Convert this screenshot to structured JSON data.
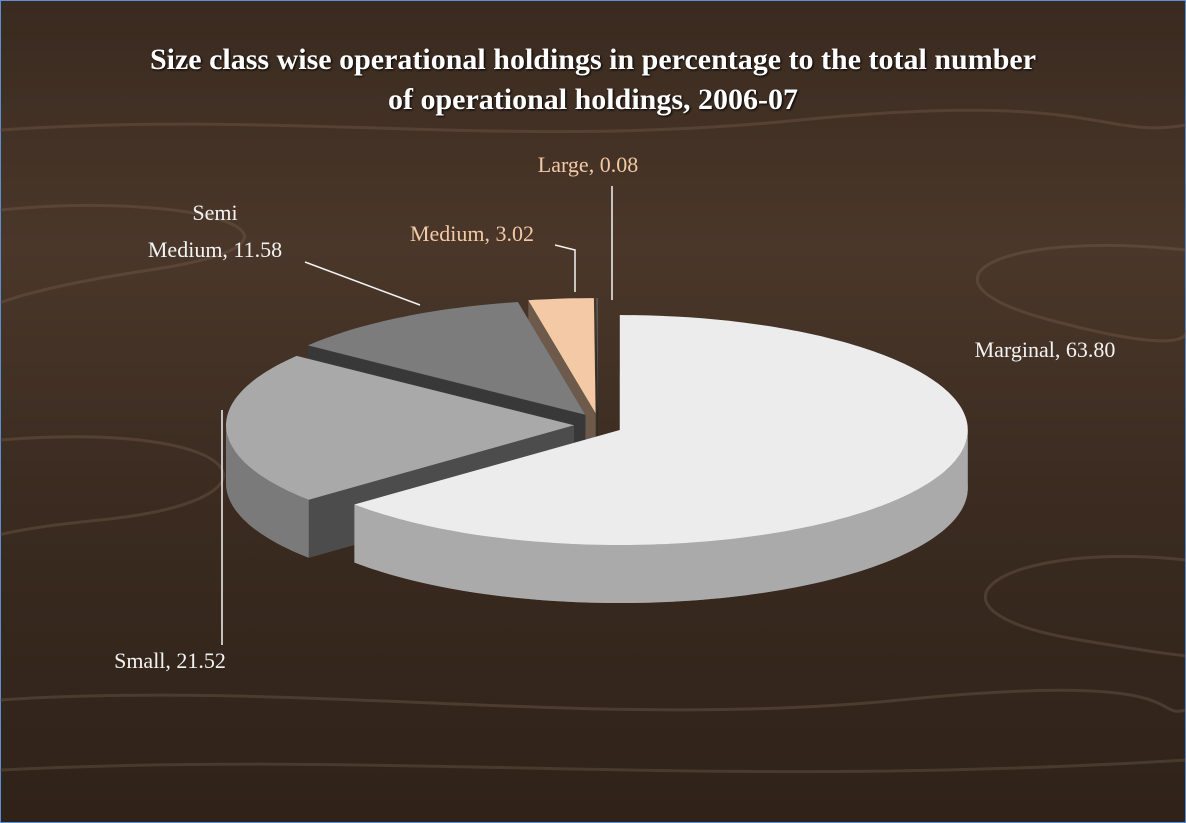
{
  "chart_data": {
    "type": "pie",
    "title": "Size class wise operational holdings in percentage to the total number of operational holdings, 2006-07",
    "values": [
      63.8,
      21.52,
      11.58,
      3.02,
      0.08
    ],
    "value_labels": [
      "Marginal, 63.80",
      "Small, 21.52",
      "Semi Medium, 11.58",
      "Medium, 3.02",
      "Large, 0.08"
    ],
    "colors": [
      "#ececec",
      "#a9a9a9",
      "#7c7c7c",
      "#f3c9a6",
      "#5c5c5c"
    ]
  }
}
